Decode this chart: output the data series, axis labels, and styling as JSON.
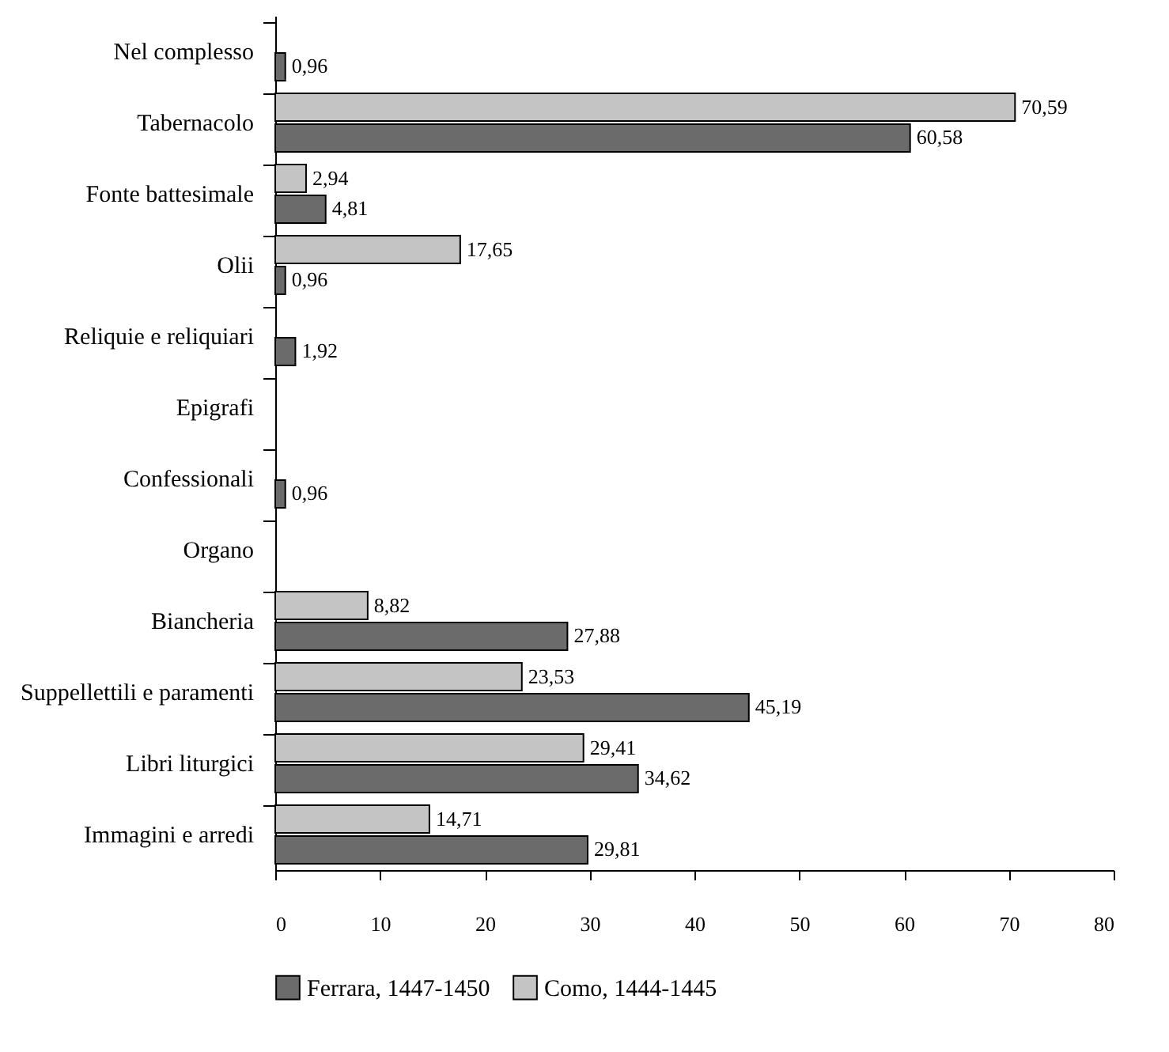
{
  "chart_data": {
    "type": "bar",
    "orientation": "horizontal",
    "categories": [
      "Nel complesso",
      "Tabernacolo",
      "Fonte battesimale",
      "Olii",
      "Reliquie e reliquiari",
      "Epigrafi",
      "Confessionali",
      "Organo",
      "Biancheria",
      "Suppellettili e paramenti",
      "Libri liturgici",
      "Immagini e arredi"
    ],
    "series": [
      {
        "name": "Ferrara, 1447-1450",
        "color": "#6b6b6b",
        "values": [
          0.96,
          60.58,
          4.81,
          0.96,
          1.92,
          null,
          0.96,
          null,
          27.88,
          45.19,
          34.62,
          29.81
        ],
        "value_labels": [
          "0,96",
          "60,58",
          "4,81",
          "0,96",
          "1,92",
          null,
          "0,96",
          null,
          "27,88",
          "45,19",
          "34,62",
          "29,81"
        ]
      },
      {
        "name": "Como, 1444-1445",
        "color": "#c4c4c4",
        "values": [
          null,
          70.59,
          2.94,
          17.65,
          null,
          null,
          null,
          null,
          8.82,
          23.53,
          29.41,
          14.71
        ],
        "value_labels": [
          null,
          "70,59",
          "2,94",
          "17,65",
          null,
          null,
          null,
          null,
          "8,82",
          "23,53",
          "29,41",
          "14,71"
        ]
      }
    ],
    "xlim": [
      0,
      80
    ],
    "xticks": [
      0,
      10,
      20,
      30,
      40,
      50,
      60,
      70,
      80
    ],
    "grid": false,
    "legend": "bottom"
  }
}
